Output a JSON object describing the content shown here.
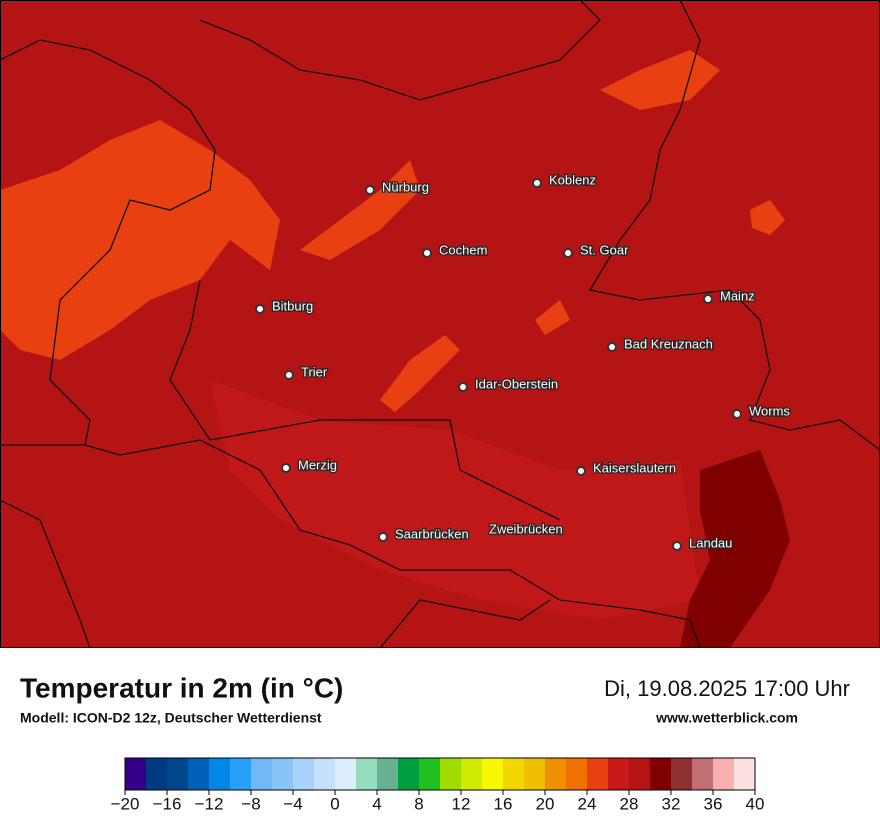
{
  "header": {
    "title": "Temperatur in 2m (in °C)",
    "subtitle": "Modell: ICON-D2 12z, Deutscher Wetterdienst",
    "date": "Di, 19.08.2025 17:00 Uhr",
    "website": "www.wetterblick.com"
  },
  "cities": [
    "Nürburg",
    "Koblenz",
    "Cochem",
    "St. Goar",
    "Bitburg",
    "Mainz",
    "Bad Kreuznach",
    "Trier",
    "Idar-Oberstein",
    "Worms",
    "Merzig",
    "Kaiserslautern",
    "Saarbrücken",
    "Zweibrücken",
    "Landau"
  ],
  "colorbar": {
    "lim": [
      -20,
      40
    ],
    "ticks": [
      {
        "value": -20,
        "label": "−20"
      },
      {
        "value": -16,
        "label": "−16"
      },
      {
        "value": -12,
        "label": "−12"
      },
      {
        "value": -8,
        "label": "−8"
      },
      {
        "value": -4,
        "label": "−4"
      },
      0,
      4,
      8,
      12,
      16,
      20,
      24,
      28,
      32,
      36,
      40
    ],
    "colors": [
      "#34008a",
      "#003a80",
      "#00468c",
      "#0060b8",
      "#0088e8",
      "#28a0f8",
      "#70b8f8",
      "#88c4f8",
      "#a8d4fc",
      "#c4e0fc",
      "#dceefe",
      "#98dcc0",
      "#68b090",
      "#00a040",
      "#20c020",
      "#a0dc00",
      "#d0ec00",
      "#f8f800",
      "#f0d800",
      "#f0c000",
      "#f09000",
      "#f07000",
      "#e84010",
      "#c81818",
      "#b41414",
      "#800000",
      "#903030",
      "#c07070",
      "#f8b0b0",
      "#fde0e0"
    ]
  }
}
